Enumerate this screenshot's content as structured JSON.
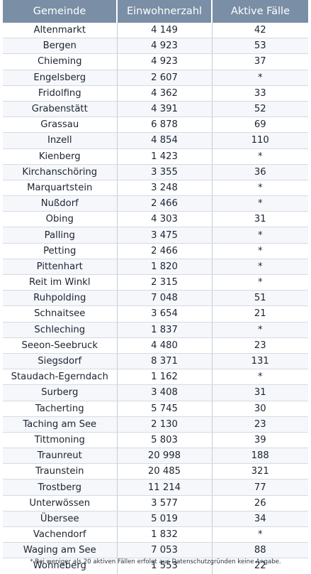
{
  "table": {
    "headers": [
      "Gemeinde",
      "Einwohnerzahl",
      "Aktive Fälle"
    ],
    "rows": [
      [
        "Altenmarkt",
        "4 149",
        "42"
      ],
      [
        "Bergen",
        "4 923",
        "53"
      ],
      [
        "Chieming",
        "4 923",
        "37"
      ],
      [
        "Engelsberg",
        "2 607",
        "*"
      ],
      [
        "Fridolfing",
        "4 362",
        "33"
      ],
      [
        "Grabenstätt",
        "4 391",
        "52"
      ],
      [
        "Grassau",
        "6 878",
        "69"
      ],
      [
        "Inzell",
        "4 854",
        "110"
      ],
      [
        "Kienberg",
        "1 423",
        "*"
      ],
      [
        "Kirchanschöring",
        "3 355",
        "36"
      ],
      [
        "Marquartstein",
        "3 248",
        "*"
      ],
      [
        "Nußdorf",
        "2 466",
        "*"
      ],
      [
        "Obing",
        "4 303",
        "31"
      ],
      [
        "Palling",
        "3 475",
        "*"
      ],
      [
        "Petting",
        "2 466",
        "*"
      ],
      [
        "Pittenhart",
        "1 820",
        "*"
      ],
      [
        "Reit im Winkl",
        "2 315",
        "*"
      ],
      [
        "Ruhpolding",
        "7 048",
        "51"
      ],
      [
        "Schnaitsee",
        "3 654",
        "21"
      ],
      [
        "Schleching",
        "1 837",
        "*"
      ],
      [
        "Seeon-Seebruck",
        "4 480",
        "23"
      ],
      [
        "Siegsdorf",
        "8 371",
        "131"
      ],
      [
        "Staudach-Egerndach",
        "1 162",
        "*"
      ],
      [
        "Surberg",
        "3 408",
        "31"
      ],
      [
        "Tacherting",
        "5 745",
        "30"
      ],
      [
        "Taching am See",
        "2 130",
        "23"
      ],
      [
        "Tittmoning",
        "5 803",
        "39"
      ],
      [
        "Traunreut",
        "20 998",
        "188"
      ],
      [
        "Traunstein",
        "20 485",
        "321"
      ],
      [
        "Trostberg",
        "11 214",
        "77"
      ],
      [
        "Unterwössen",
        "3 577",
        "26"
      ],
      [
        "Übersee",
        "5 019",
        "34"
      ],
      [
        "Vachendorf",
        "1 832",
        "*"
      ],
      [
        "Waging am See",
        "7 053",
        "88"
      ],
      [
        "Wonneberg",
        "1 553",
        "22"
      ]
    ]
  },
  "footnote": "* Bei weniger als 20 aktiven Fällen erfolgt aus Datenschutzgründen keine Angabe.",
  "colors": {
    "header_bg": "#7a8fa6",
    "header_text": "#ffffff",
    "row_alt": "#f5f7fa",
    "text": "#1c2433"
  }
}
